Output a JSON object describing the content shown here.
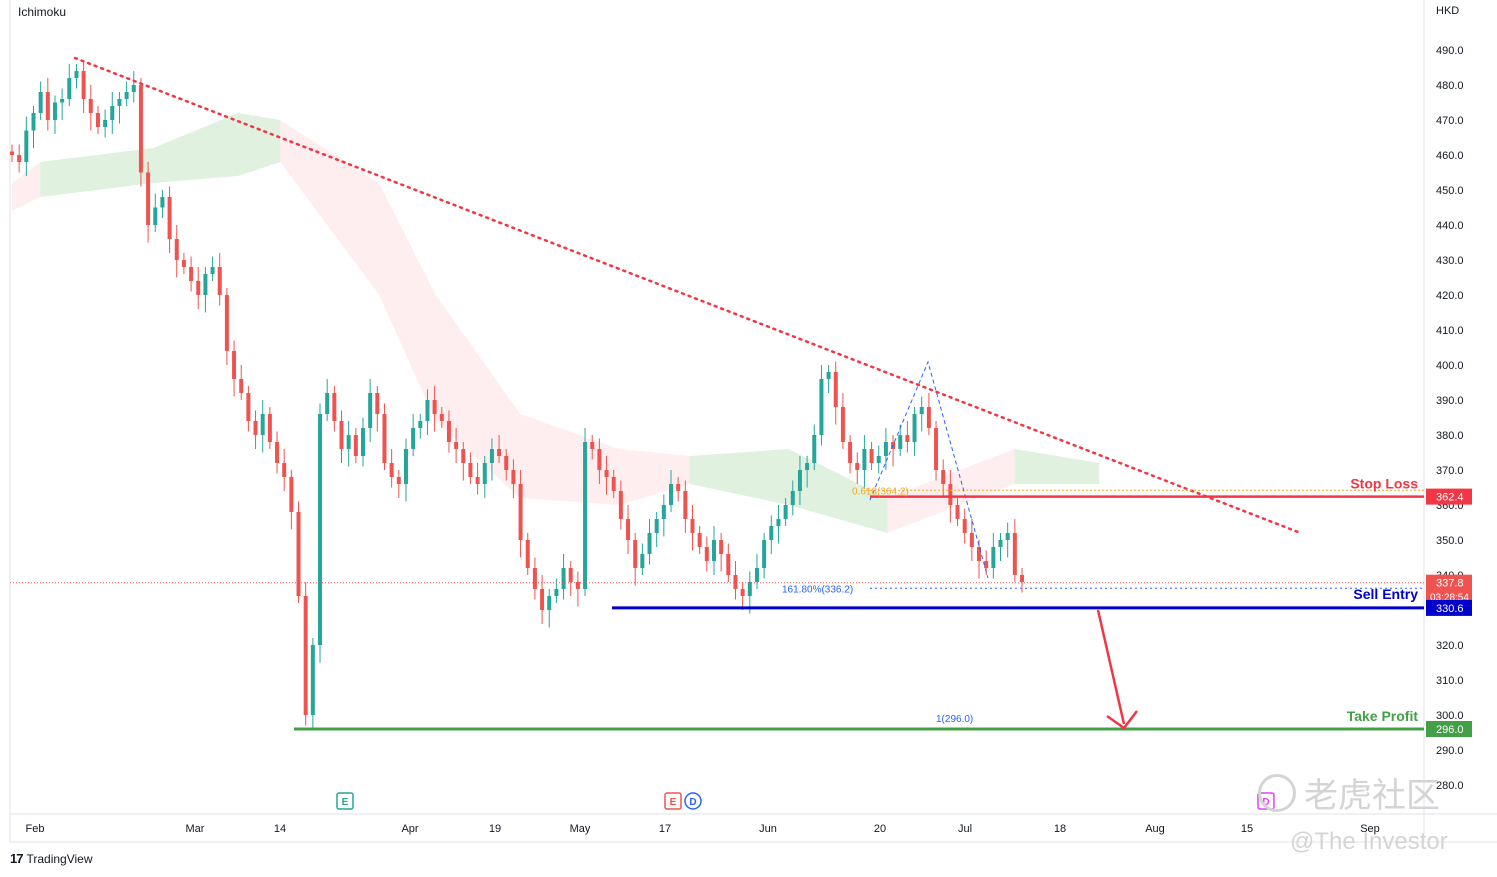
{
  "header": {
    "indicator": "Ichimoku",
    "currency": "HKD"
  },
  "footer": {
    "brand": "TradingView",
    "watermark_cn": "老虎社区",
    "watermark_en": "@The Investor"
  },
  "colors": {
    "bull": "#26a69a",
    "bear": "#ef5350",
    "trendline": "#f23645",
    "stop_loss": "#f23645",
    "sell_entry": "#0000cc",
    "take_profit": "#43a047",
    "cloud_bull": "#a5d6a7",
    "cloud_bear": "#ffcdd2",
    "fib_blue": "#2962ff",
    "fib_orange": "#f5a623"
  },
  "chart_data": {
    "type": "candlestick",
    "y_axis": {
      "min": 280,
      "max": 490,
      "ticks": [
        490.0,
        480.0,
        470.0,
        460.0,
        450.0,
        440.0,
        430.0,
        420.0,
        410.0,
        400.0,
        390.0,
        380.0,
        370.0,
        360.0,
        350.0,
        340.0,
        330.0,
        320.0,
        310.0,
        300.0,
        290.0,
        280.0
      ]
    },
    "x_axis": {
      "labels": [
        "Feb",
        "Mar",
        "14",
        "Apr",
        "19",
        "May",
        "17",
        "Jun",
        "20",
        "Jul",
        "18",
        "Aug",
        "15",
        "Sep"
      ]
    },
    "close_series": [
      460,
      458,
      467,
      472,
      478,
      470,
      475,
      476,
      482,
      484,
      476,
      472,
      468,
      470,
      474,
      476,
      478,
      480,
      455,
      440,
      445,
      448,
      436,
      430,
      428,
      424,
      420,
      426,
      428,
      420,
      404,
      396,
      392,
      384,
      380,
      386,
      378,
      372,
      368,
      358,
      334,
      300,
      320,
      386,
      392,
      384,
      376,
      380,
      374,
      382,
      392,
      386,
      372,
      368,
      366,
      376,
      382,
      384,
      390,
      386,
      384,
      378,
      376,
      372,
      368,
      366,
      372,
      376,
      374,
      370,
      366,
      350,
      342,
      336,
      330,
      334,
      336,
      342,
      338,
      336,
      378,
      376,
      370,
      368,
      364,
      356,
      350,
      342,
      346,
      352,
      356,
      360,
      366,
      364,
      356,
      352,
      348,
      344,
      350,
      346,
      340,
      336,
      334,
      338,
      342,
      350,
      354,
      356,
      360,
      364,
      370,
      372,
      380,
      396,
      398,
      388,
      378,
      372,
      370,
      376,
      372,
      374,
      378,
      376,
      380,
      378,
      386,
      388,
      382,
      370,
      366,
      360,
      356,
      352,
      348,
      344,
      342,
      348,
      350,
      352,
      340,
      338
    ],
    "ichimoku_cloud": [
      {
        "x_pos": 0.0,
        "top": 452,
        "bottom": 444,
        "color": "bear"
      },
      {
        "x_pos": 0.02,
        "top": 458,
        "bottom": 448,
        "color": "bull"
      },
      {
        "x_pos": 0.1,
        "top": 462,
        "bottom": 452,
        "color": "bull"
      },
      {
        "x_pos": 0.16,
        "top": 472,
        "bottom": 454,
        "color": "bull"
      },
      {
        "x_pos": 0.19,
        "top": 470,
        "bottom": 458,
        "color": "bear"
      },
      {
        "x_pos": 0.26,
        "top": 452,
        "bottom": 420,
        "color": "bear"
      },
      {
        "x_pos": 0.3,
        "top": 420,
        "bottom": 384,
        "color": "bear"
      },
      {
        "x_pos": 0.36,
        "top": 386,
        "bottom": 362,
        "color": "bear"
      },
      {
        "x_pos": 0.43,
        "top": 376,
        "bottom": 360,
        "color": "bear"
      },
      {
        "x_pos": 0.48,
        "top": 374,
        "bottom": 366,
        "color": "bull"
      },
      {
        "x_pos": 0.55,
        "top": 376,
        "bottom": 360,
        "color": "bull"
      },
      {
        "x_pos": 0.62,
        "top": 362,
        "bottom": 352,
        "color": "bear"
      },
      {
        "x_pos": 0.71,
        "top": 376,
        "bottom": 366,
        "color": "bull"
      },
      {
        "x_pos": 0.77,
        "top": 372,
        "bottom": 366,
        "color": "bear"
      }
    ],
    "levels": {
      "stop_loss": {
        "label": "Stop Loss",
        "value": 362.4,
        "badge": "362.4"
      },
      "sell_entry": {
        "label": "Sell Entry",
        "value": 330.6,
        "badge": "330.6"
      },
      "take_profit": {
        "label": "Take Profit",
        "value": 296.0,
        "badge": "296.0"
      },
      "current_price": {
        "value": 337.8,
        "badge": "337.8",
        "countdown": "03:28:54"
      }
    },
    "fibonacci": {
      "label_618": "0.618(364.2)",
      "label_1618": "161.80%(336.2)",
      "label_1": "1(296.0)"
    },
    "events": [
      {
        "marker": "E",
        "color": "#26a69a"
      },
      {
        "marker": "E",
        "color": "#ef5350"
      },
      {
        "marker": "D",
        "color": "#2962ff"
      },
      {
        "marker": "D",
        "color": "#e040fb"
      }
    ]
  }
}
